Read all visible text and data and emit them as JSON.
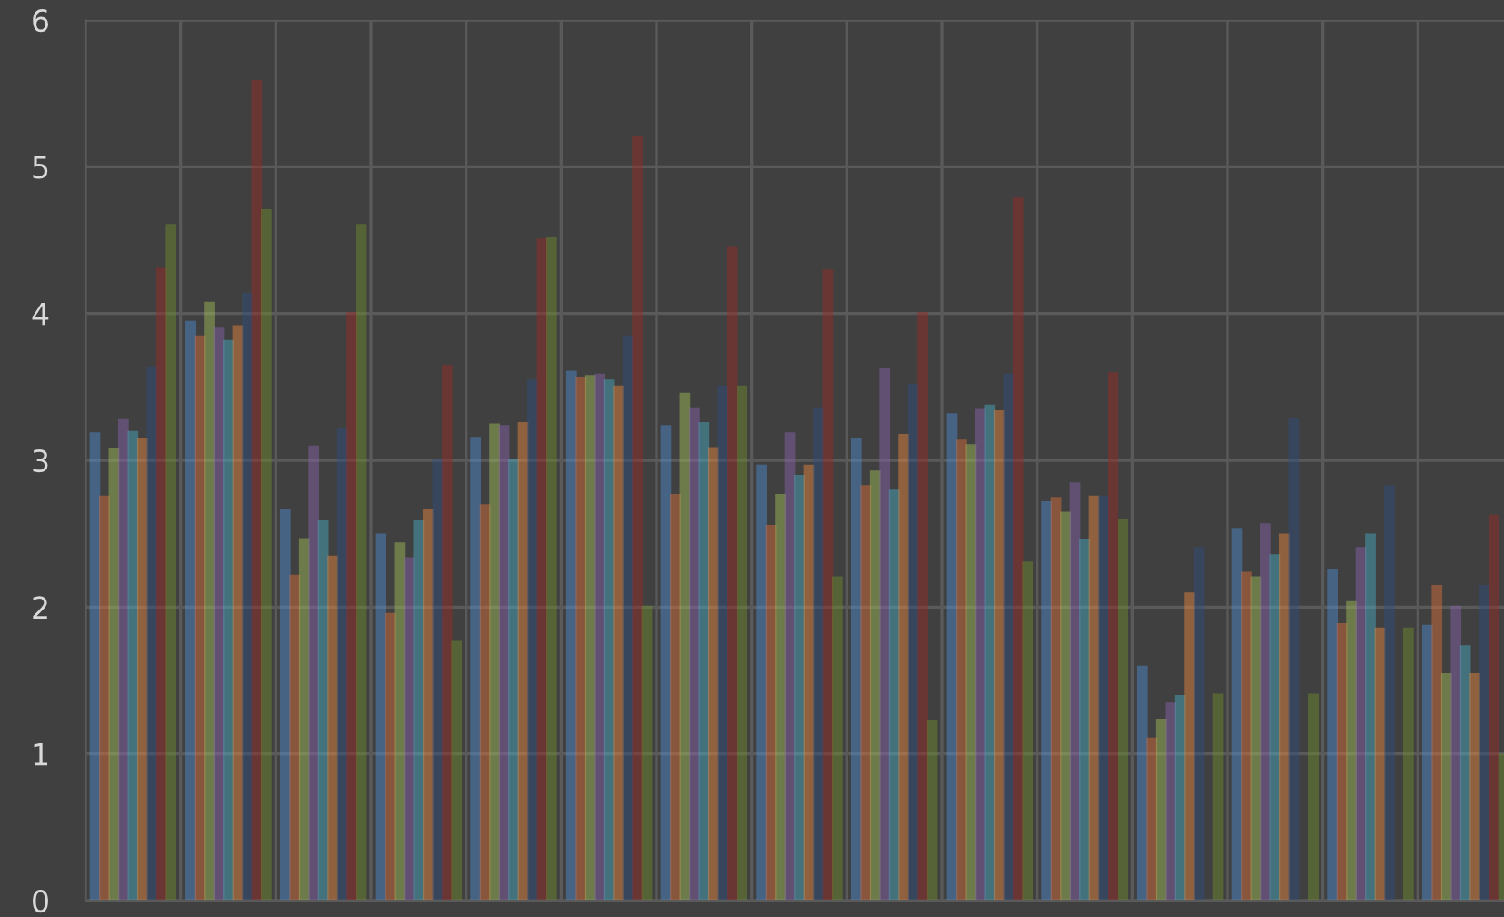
{
  "chart_data": {
    "type": "bar",
    "categories": [
      null,
      null,
      null,
      null,
      null,
      null,
      null,
      null,
      null,
      null,
      null,
      null,
      null,
      null,
      null
    ],
    "series": [
      {
        "color": "#4f8fd6",
        "values": [
          3.18,
          3.94,
          2.66,
          2.49,
          3.15,
          3.6,
          3.23,
          2.96,
          3.14,
          3.31,
          2.71,
          1.59,
          2.53,
          2.25,
          1.87
        ]
      },
      {
        "color": "#e0703a",
        "values": [
          2.75,
          3.84,
          2.21,
          1.95,
          2.69,
          3.56,
          2.76,
          2.55,
          2.82,
          3.13,
          2.74,
          1.1,
          2.23,
          1.88,
          2.14
        ]
      },
      {
        "color": "#a5c35a",
        "values": [
          3.07,
          4.07,
          2.46,
          2.43,
          3.24,
          3.57,
          3.45,
          2.76,
          2.92,
          3.1,
          2.64,
          1.23,
          2.2,
          2.03,
          1.54
        ]
      },
      {
        "color": "#8a64b0",
        "values": [
          3.27,
          3.9,
          3.09,
          2.33,
          3.23,
          3.58,
          3.35,
          3.18,
          3.62,
          3.34,
          2.84,
          1.34,
          2.56,
          2.4,
          2.0
        ]
      },
      {
        "color": "#4bb0c6",
        "values": [
          3.19,
          3.81,
          2.58,
          2.58,
          3.0,
          3.54,
          3.25,
          2.89,
          2.79,
          3.37,
          2.45,
          1.39,
          2.35,
          2.49,
          1.73
        ]
      },
      {
        "color": "#f08a3e",
        "values": [
          3.14,
          3.91,
          2.34,
          2.66,
          3.25,
          3.5,
          3.08,
          2.96,
          3.17,
          3.33,
          2.75,
          2.09,
          2.49,
          1.85,
          1.54
        ]
      },
      {
        "color": "#2e4f80",
        "values": [
          3.63,
          4.13,
          3.21,
          3.0,
          3.54,
          3.84,
          3.5,
          3.35,
          3.51,
          3.58,
          2.75,
          2.4,
          3.28,
          2.82,
          2.14
        ]
      },
      {
        "color": "#9c2a26",
        "values": [
          4.3,
          5.58,
          4.0,
          3.64,
          4.5,
          5.2,
          4.45,
          4.29,
          4.0,
          4.78,
          3.59,
          null,
          null,
          null,
          2.62
        ]
      },
      {
        "color": "#6f8f2a",
        "values": [
          4.6,
          4.7,
          4.6,
          1.76,
          4.51,
          2.0,
          3.5,
          2.2,
          1.22,
          2.3,
          2.59,
          1.4,
          1.4,
          1.85,
          0.99
        ]
      }
    ],
    "ylim": [
      0,
      6
    ],
    "yticks": [
      0,
      1,
      2,
      3,
      4,
      5,
      6
    ],
    "grid": true
  }
}
